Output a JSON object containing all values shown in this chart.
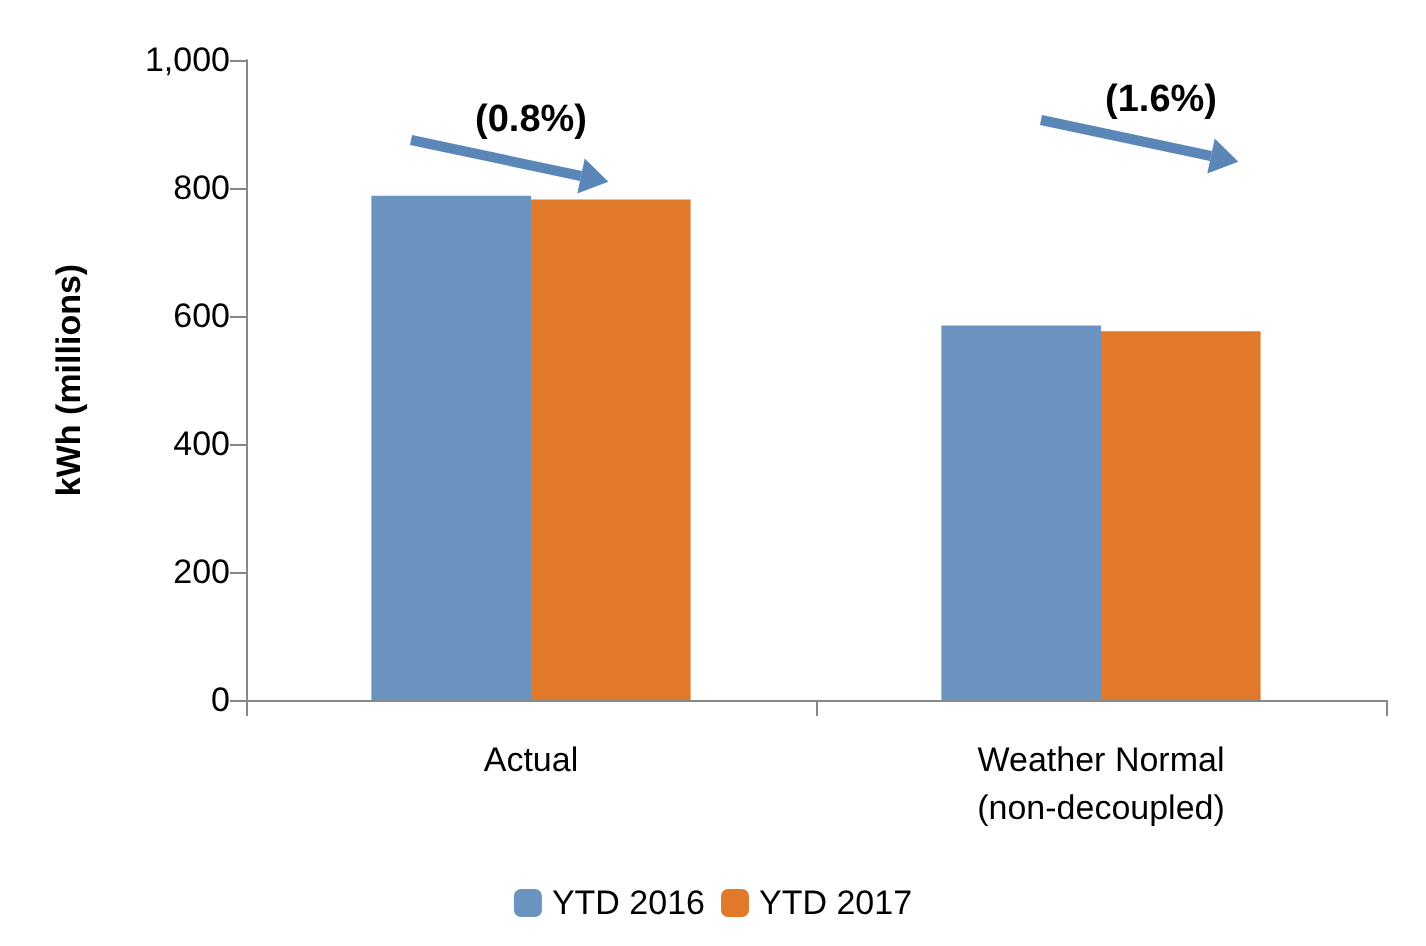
{
  "chart_data": {
    "type": "bar",
    "ylabel": "kWh (millions)",
    "categories": [
      "Actual",
      "Weather Normal\n(non-decoupled)"
    ],
    "series": [
      {
        "name": "YTD 2016",
        "color": "#6a93c0",
        "values": [
          788,
          585
        ]
      },
      {
        "name": "YTD 2017",
        "color": "#e07a2a",
        "values": [
          782,
          576
        ]
      }
    ],
    "ylim": [
      0,
      1000
    ],
    "yticks": [
      0,
      200,
      400,
      600,
      800,
      {
        "value": 1000,
        "label": "1,000"
      }
    ],
    "grid": false,
    "legend": "bottom",
    "annotations": [
      "(0.8%)",
      "(1.6%)"
    ]
  }
}
